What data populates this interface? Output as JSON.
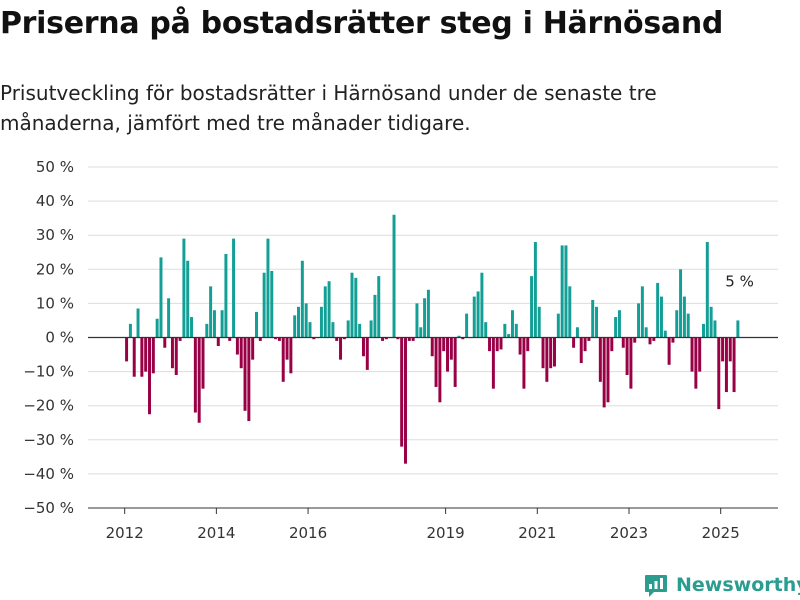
{
  "title": "Priserna på bostadsrätter steg i Härnösand",
  "subtitle": "Prisutveckling för bostadsrätter i Härnösand under de senaste tre månaderna, jämfört med tre månader tidigare.",
  "brand": {
    "name": "Newsworthy",
    "icon": "newsworthy-logo-icon"
  },
  "colors": {
    "positive": "#139f95",
    "negative": "#990046",
    "grid": "#dddddd",
    "axis": "#333333"
  },
  "chart_data": {
    "type": "bar",
    "ylim": [
      -50,
      50
    ],
    "yticks": [
      50,
      40,
      30,
      20,
      10,
      0,
      -10,
      -20,
      -30,
      -40,
      -50
    ],
    "ytick_labels": [
      "50 %",
      "40 %",
      "30 %",
      "20 %",
      "10 %",
      "0 %",
      "−10 %",
      "−20 %",
      "−30 %",
      "−40 %",
      "−50 %"
    ],
    "xlim": [
      2011.2,
      2026.25
    ],
    "xticks": [
      2012,
      2014,
      2016,
      2019,
      2021,
      2023,
      2025
    ],
    "xtick_labels": [
      "2012",
      "2014",
      "2016",
      "2019",
      "2021",
      "2023",
      "2025"
    ],
    "grid": true,
    "legend": "none",
    "x_start": "2012-01",
    "bar_interval": "month",
    "values": [
      -7,
      4,
      -11.5,
      8.5,
      -11.5,
      -10,
      -22.5,
      -10.5,
      5.5,
      23.5,
      -3,
      11.5,
      -9,
      -11,
      -1,
      29,
      22.5,
      6,
      -22,
      -25,
      -15,
      4,
      15,
      8,
      -2.5,
      8,
      24.5,
      -1,
      29,
      -5,
      -9,
      -21.5,
      -24.5,
      -6.5,
      7.5,
      -1,
      19,
      29,
      19.5,
      -0.5,
      -1,
      -13,
      -6.5,
      -10.5,
      6.5,
      9,
      22.5,
      10,
      4.5,
      -0.5,
      0,
      9,
      15,
      16.5,
      4.5,
      -1,
      -6.5,
      -0.5,
      5,
      19,
      17.5,
      4,
      -5.5,
      -9.5,
      5,
      12.5,
      18,
      -1,
      -0.5,
      0,
      36,
      -0.5,
      -32,
      -37,
      -1,
      -1,
      10,
      3,
      11.5,
      14,
      -5.5,
      -14.5,
      -19,
      -4,
      -10,
      -6.5,
      -14.5,
      0.5,
      -0.5,
      7,
      0,
      12,
      13.5,
      19,
      4.5,
      -4,
      -15,
      -4,
      -3.5,
      4,
      1,
      8,
      4,
      -5,
      -15,
      -4,
      18,
      28,
      9,
      -9,
      -13,
      -9,
      -8.5,
      7,
      27,
      27,
      15,
      -3,
      3,
      -7.5,
      -4,
      -1,
      11,
      9,
      -13,
      -20.5,
      -19,
      -4,
      6,
      8,
      -3,
      -11,
      -15,
      -1.5,
      10,
      15,
      3,
      -2,
      -1,
      16,
      12,
      2,
      -8,
      -1.5,
      8,
      20,
      12,
      7,
      -10,
      -15,
      -10,
      4,
      28,
      9,
      5,
      -21,
      -7,
      -16,
      -7,
      -16,
      5
    ],
    "annotations": [
      {
        "text": "5 %"
      }
    ]
  }
}
